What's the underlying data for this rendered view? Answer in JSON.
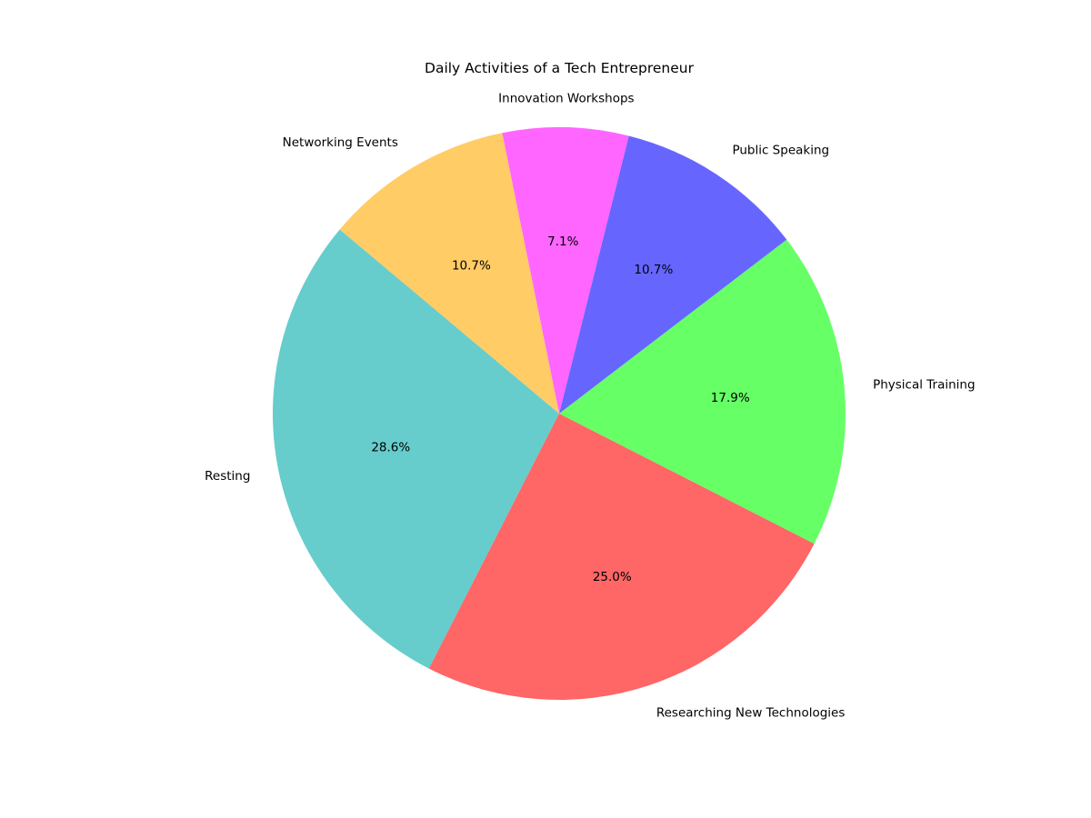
{
  "chart_data": {
    "type": "pie",
    "title": "Daily Activities of a Tech Entrepreneur",
    "legend": "none",
    "start_angle_deg": 140,
    "direction": "counterclockwise",
    "slices": [
      {
        "label": "Resting",
        "value": 28.6,
        "pct_label": "28.6%",
        "color": "#66CDCC"
      },
      {
        "label": "Researching New Technologies",
        "value": 25.0,
        "pct_label": "25.0%",
        "color": "#FF6666"
      },
      {
        "label": "Physical Training",
        "value": 17.9,
        "pct_label": "17.9%",
        "color": "#66FF66"
      },
      {
        "label": "Public Speaking",
        "value": 10.7,
        "pct_label": "10.7%",
        "color": "#6666FF"
      },
      {
        "label": "Innovation Workshops",
        "value": 7.1,
        "pct_label": "7.1%",
        "color": "#FF66FF"
      },
      {
        "label": "Networking Events",
        "value": 10.7,
        "pct_label": "10.7%",
        "color": "#FFCC66"
      }
    ]
  }
}
